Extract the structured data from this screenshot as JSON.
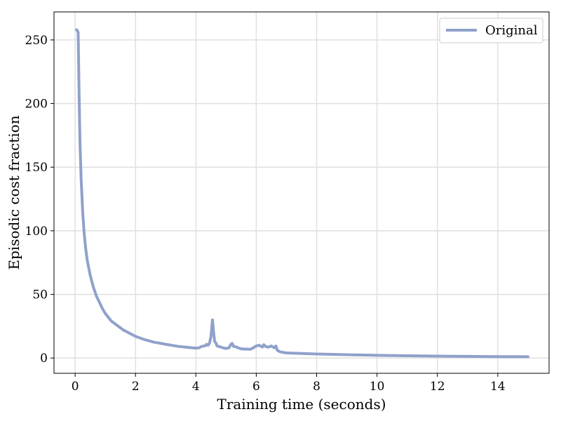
{
  "chart_data": {
    "type": "line",
    "xlabel": "Training time (seconds)",
    "ylabel": "Episodic cost fraction",
    "xlim": [
      -0.7,
      15.7
    ],
    "ylim": [
      -12,
      272
    ],
    "xticks": [
      0,
      2,
      4,
      6,
      8,
      10,
      12,
      14
    ],
    "yticks": [
      0,
      50,
      100,
      150,
      200,
      250
    ],
    "grid": true,
    "legend_position": "top-right",
    "colors": {
      "series": "#8fa1cb",
      "grid": "#e0e0e0",
      "axes": "#000000"
    },
    "series": [
      {
        "name": "Original",
        "x": [
          0.05,
          0.1,
          0.13,
          0.16,
          0.2,
          0.25,
          0.3,
          0.35,
          0.4,
          0.5,
          0.6,
          0.7,
          0.8,
          0.9,
          1.0,
          1.1,
          1.2,
          1.4,
          1.6,
          1.8,
          2.0,
          2.3,
          2.6,
          3.0,
          3.4,
          3.8,
          4.0,
          4.1,
          4.2,
          4.3,
          4.35,
          4.4,
          4.45,
          4.5,
          4.55,
          4.58,
          4.62,
          4.66,
          4.7,
          4.8,
          4.9,
          5.0,
          5.1,
          5.15,
          5.2,
          5.25,
          5.3,
          5.4,
          5.5,
          5.6,
          5.7,
          5.8,
          5.9,
          6.0,
          6.1,
          6.2,
          6.25,
          6.3,
          6.4,
          6.5,
          6.6,
          6.65,
          6.7,
          6.8,
          7.0,
          7.5,
          8.0,
          9.0,
          10.0,
          11.0,
          12.0,
          13.0,
          14.0,
          15.0
        ],
        "y": [
          258,
          256,
          210,
          170,
          140,
          115,
          98,
          86,
          77,
          65,
          56,
          49,
          44,
          39,
          35,
          32,
          29,
          25.5,
          22,
          19.5,
          17,
          14.5,
          12.5,
          10.8,
          9.2,
          8.2,
          7.8,
          8.0,
          9.2,
          9.5,
          10.8,
          10.0,
          11.5,
          17,
          30,
          22,
          13,
          12,
          9.5,
          8.8,
          8.0,
          7.5,
          8.0,
          10.5,
          11.5,
          9.0,
          9.0,
          8.0,
          7.2,
          7.0,
          7.0,
          6.8,
          8.0,
          9.5,
          10.0,
          8.6,
          10.5,
          9.2,
          8.5,
          9.5,
          8.0,
          9.5,
          6.0,
          4.8,
          4.0,
          3.6,
          3.2,
          2.6,
          2.1,
          1.8,
          1.5,
          1.3,
          1.1,
          1.0
        ]
      }
    ]
  }
}
